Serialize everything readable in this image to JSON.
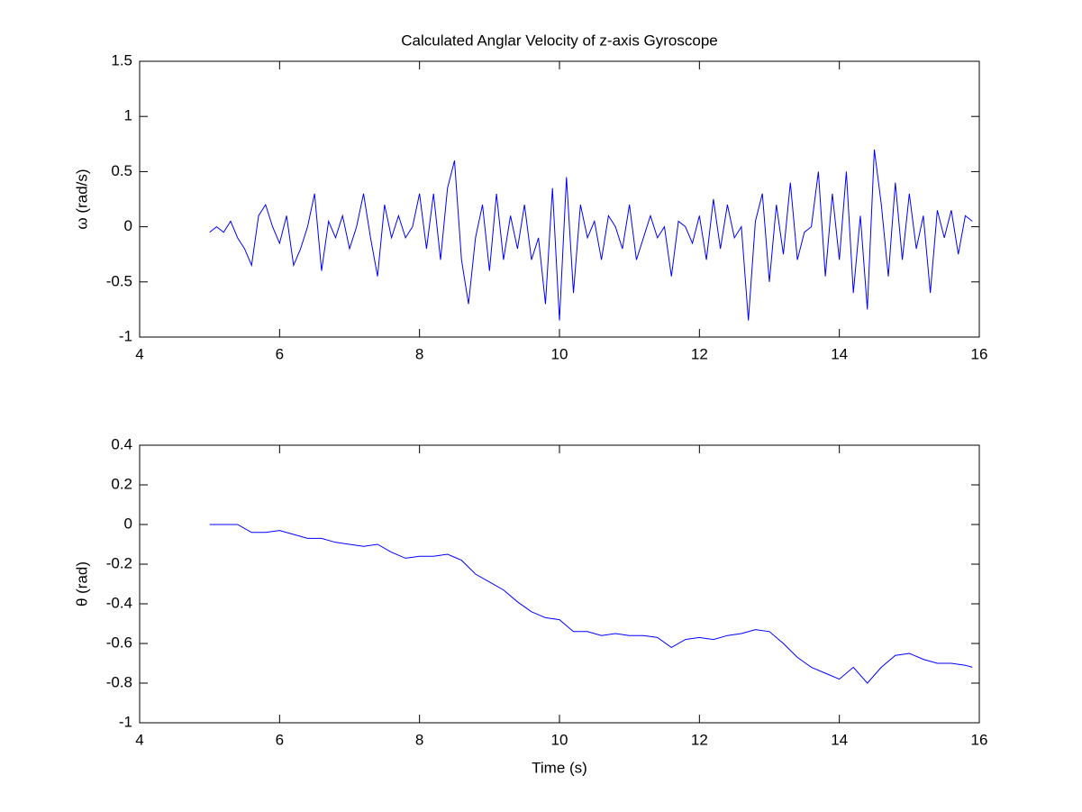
{
  "chart_data": [
    {
      "type": "line",
      "title": "Calculated Anglar Velocity of z-axis Gyroscope",
      "ylabel": "ω (rad/s)",
      "x": [
        5,
        5.1,
        5.2,
        5.3,
        5.4,
        5.5,
        5.6,
        5.7,
        5.8,
        5.9,
        6,
        6.1,
        6.2,
        6.3,
        6.4,
        6.5,
        6.6,
        6.7,
        6.8,
        6.9,
        7,
        7.1,
        7.2,
        7.3,
        7.4,
        7.5,
        7.6,
        7.7,
        7.8,
        7.9,
        8,
        8.1,
        8.2,
        8.3,
        8.4,
        8.5,
        8.6,
        8.7,
        8.8,
        8.9,
        9,
        9.1,
        9.2,
        9.3,
        9.4,
        9.5,
        9.6,
        9.7,
        9.8,
        9.9,
        10,
        10.1,
        10.2,
        10.3,
        10.4,
        10.5,
        10.6,
        10.7,
        10.8,
        10.9,
        11,
        11.1,
        11.2,
        11.3,
        11.4,
        11.5,
        11.6,
        11.7,
        11.8,
        11.9,
        12,
        12.1,
        12.2,
        12.3,
        12.4,
        12.5,
        12.6,
        12.7,
        12.8,
        12.9,
        13,
        13.1,
        13.2,
        13.3,
        13.4,
        13.5,
        13.6,
        13.7,
        13.8,
        13.9,
        14,
        14.1,
        14.2,
        14.3,
        14.4,
        14.5,
        14.6,
        14.7,
        14.8,
        14.9,
        15,
        15.1,
        15.2,
        15.3,
        15.4,
        15.5,
        15.6,
        15.7,
        15.8,
        15.9
      ],
      "values": [
        -0.05,
        0,
        -0.05,
        0.05,
        -0.1,
        -0.2,
        -0.35,
        0.1,
        0.2,
        0,
        -0.15,
        0.1,
        -0.35,
        -0.2,
        0,
        0.3,
        -0.4,
        0.05,
        -0.1,
        0.1,
        -0.2,
        0,
        0.3,
        -0.1,
        -0.45,
        0.2,
        -0.1,
        0.1,
        -0.1,
        0,
        0.3,
        -0.2,
        0.3,
        -0.3,
        0.35,
        0.6,
        -0.3,
        -0.7,
        -0.1,
        0.2,
        -0.4,
        0.3,
        -0.3,
        0.1,
        -0.2,
        0.2,
        -0.3,
        -0.1,
        -0.7,
        0.35,
        -0.85,
        0.45,
        -0.6,
        0.2,
        -0.1,
        0.05,
        -0.3,
        0.1,
        0,
        -0.2,
        0.2,
        -0.3,
        -0.1,
        0.1,
        -0.1,
        0,
        -0.45,
        0.05,
        0,
        -0.15,
        0.1,
        -0.3,
        0.25,
        -0.2,
        0.2,
        -0.1,
        0,
        -0.85,
        0.05,
        0.3,
        -0.5,
        0.2,
        -0.25,
        0.4,
        -0.3,
        -0.05,
        0,
        0.5,
        -0.45,
        0.3,
        -0.3,
        0.5,
        -0.6,
        0.1,
        -0.75,
        0.7,
        0.2,
        -0.45,
        0.4,
        -0.3,
        0.3,
        -0.2,
        0.1,
        -0.6,
        0.15,
        -0.1,
        0.15,
        -0.25,
        0.1,
        0.05
      ],
      "color": "#0000ff",
      "xlim": [
        4,
        16
      ],
      "xticks": [
        4,
        6,
        8,
        10,
        12,
        14,
        16
      ],
      "ylim": [
        -1,
        1.5
      ],
      "yticks": [
        -1,
        -0.5,
        0,
        0.5,
        1,
        1.5
      ]
    },
    {
      "type": "line",
      "ylabel": "θ (rad)",
      "xlabel": "Time (s)",
      "x": [
        5,
        5.2,
        5.4,
        5.6,
        5.8,
        6,
        6.2,
        6.4,
        6.6,
        6.8,
        7,
        7.2,
        7.4,
        7.6,
        7.8,
        8,
        8.2,
        8.4,
        8.6,
        8.8,
        9,
        9.2,
        9.4,
        9.6,
        9.8,
        10,
        10.2,
        10.4,
        10.6,
        10.8,
        11,
        11.2,
        11.4,
        11.6,
        11.8,
        12,
        12.2,
        12.4,
        12.6,
        12.8,
        13,
        13.2,
        13.4,
        13.6,
        13.8,
        14,
        14.2,
        14.4,
        14.6,
        14.8,
        15,
        15.2,
        15.4,
        15.6,
        15.8,
        15.9
      ],
      "values": [
        0,
        0,
        0,
        -0.04,
        -0.04,
        -0.03,
        -0.05,
        -0.07,
        -0.07,
        -0.09,
        -0.1,
        -0.11,
        -0.1,
        -0.14,
        -0.17,
        -0.16,
        -0.16,
        -0.15,
        -0.18,
        -0.25,
        -0.29,
        -0.33,
        -0.39,
        -0.44,
        -0.47,
        -0.48,
        -0.54,
        -0.54,
        -0.56,
        -0.55,
        -0.56,
        -0.56,
        -0.57,
        -0.62,
        -0.58,
        -0.57,
        -0.58,
        -0.56,
        -0.55,
        -0.53,
        -0.54,
        -0.6,
        -0.67,
        -0.72,
        -0.75,
        -0.78,
        -0.72,
        -0.8,
        -0.72,
        -0.66,
        -0.65,
        -0.68,
        -0.7,
        -0.7,
        -0.71,
        -0.72
      ],
      "color": "#0000ff",
      "xlim": [
        4,
        16
      ],
      "xticks": [
        4,
        6,
        8,
        10,
        12,
        14,
        16
      ],
      "ylim": [
        -1,
        0.4
      ],
      "yticks": [
        -1,
        -0.8,
        -0.6,
        -0.4,
        -0.2,
        0,
        0.2,
        0.4
      ]
    }
  ]
}
